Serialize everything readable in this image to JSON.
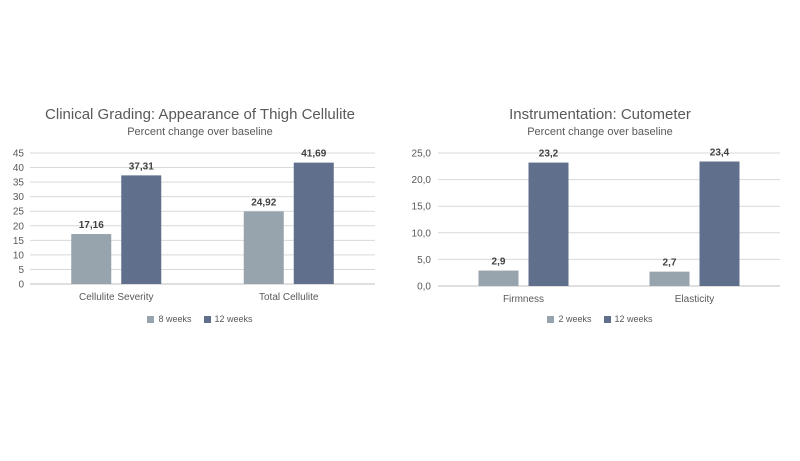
{
  "chart_data": [
    {
      "type": "bar",
      "title": "Clinical Grading: Appearance of Thigh Cellulite",
      "subtitle": "Percent change over baseline",
      "categories": [
        "Cellulite Severity",
        "Total Cellulite"
      ],
      "series": [
        {
          "name": "8 weeks",
          "values": [
            17.16,
            24.92
          ],
          "labels": [
            "17,16",
            "24,92"
          ],
          "color": "#97a3ad"
        },
        {
          "name": "12 weeks",
          "values": [
            37.31,
            41.69
          ],
          "labels": [
            "37,31",
            "41,69"
          ],
          "color": "#5f6f8c"
        }
      ],
      "ylim": [
        0,
        45
      ],
      "yticks": [
        0,
        5,
        10,
        15,
        20,
        25,
        30,
        35,
        40,
        45
      ],
      "ytick_labels": [
        "0",
        "5",
        "10",
        "15",
        "20",
        "25",
        "30",
        "35",
        "40",
        "45"
      ],
      "grid": true,
      "legend_position": "bottom"
    },
    {
      "type": "bar",
      "title": "Instrumentation: Cutometer",
      "subtitle": "Percent change over baseline",
      "categories": [
        "Firmness",
        "Elasticity"
      ],
      "series": [
        {
          "name": "2 weeks",
          "values": [
            2.9,
            2.7
          ],
          "labels": [
            "2,9",
            "2,7"
          ],
          "color": "#97a3ad"
        },
        {
          "name": "12 weeks",
          "values": [
            23.2,
            23.4
          ],
          "labels": [
            "23,2",
            "23,4"
          ],
          "color": "#5f6f8c"
        }
      ],
      "ylim": [
        0,
        25
      ],
      "yticks": [
        0,
        5,
        10,
        15,
        20,
        25
      ],
      "ytick_labels": [
        "0,0",
        "5,0",
        "10,0",
        "15,0",
        "20,0",
        "25,0"
      ],
      "grid": true,
      "legend_position": "bottom"
    }
  ]
}
